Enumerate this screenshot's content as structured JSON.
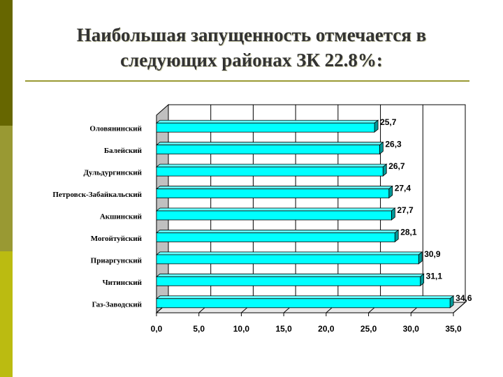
{
  "title": {
    "line1": "Наибольшая запущенность отмечается в",
    "line2": "следующих районах ЗК 22.8%:"
  },
  "colors": {
    "bar_fill": "#00ffff",
    "bar_top": "#66ffff",
    "bar_side": "#009999",
    "accent": "#999933"
  },
  "chart_data": {
    "type": "bar",
    "orientation": "horizontal",
    "three_d": true,
    "categories": [
      "Оловянинский",
      "Балейский",
      "Дульдургинский",
      "Петровск-Забайкальский",
      "Акшинский",
      "Могойтуйский",
      "Приаргунский",
      "Читинский",
      "Газ-Заводский"
    ],
    "values": [
      25.7,
      26.3,
      26.7,
      27.4,
      27.7,
      28.1,
      30.9,
      31.1,
      34.6
    ],
    "value_labels": [
      "25,7",
      "26,3",
      "26,7",
      "27,4",
      "27,7",
      "28,1",
      "30,9",
      "31,1",
      "34,6"
    ],
    "xlim": [
      0,
      35
    ],
    "x_ticks": [
      "0,0",
      "5,0",
      "10,0",
      "15,0",
      "20,0",
      "25,0",
      "30,0",
      "35,0"
    ],
    "grid": true,
    "legend": "none",
    "xlabel": "",
    "ylabel": ""
  }
}
